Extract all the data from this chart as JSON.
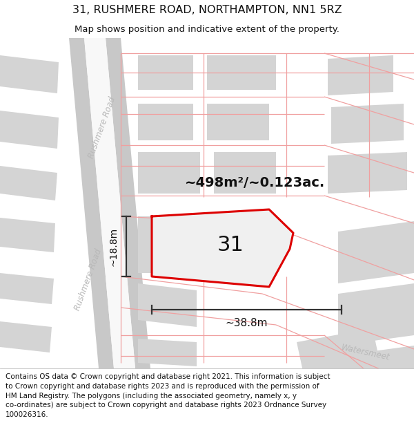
{
  "title": "31, RUSHMERE ROAD, NORTHAMPTON, NN1 5RZ",
  "subtitle": "Map shows position and indicative extent of the property.",
  "footer": "Contains OS data © Crown copyright and database right 2021. This information is subject\nto Crown copyright and database rights 2023 and is reproduced with the permission of\nHM Land Registry. The polygons (including the associated geometry, namely x, y\nco-ordinates) are subject to Crown copyright and database rights 2023 Ordnance Survey\n100026316.",
  "bg_color": "#ffffff",
  "building_fill": "#d4d4d4",
  "boundary_color": "#dd0000",
  "road_line_color": "#f0a0a0",
  "road_gray_color": "#c8c8c8",
  "area_label": "~498m²/~0.123ac.",
  "number_label": "31",
  "width_label": "~38.8m",
  "height_label": "~18.8m",
  "rushmere_road_label": "Rushmere Road",
  "watersmeet_label": "Watersmeet",
  "title_fontsize": 11,
  "subtitle_fontsize": 10,
  "footer_fontsize": 7.5
}
